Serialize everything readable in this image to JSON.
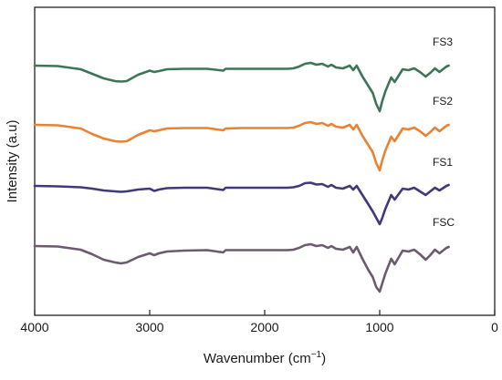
{
  "chart_data": {
    "type": "line",
    "title": "",
    "xlabel": "Wavenumber (cm",
    "xlabel_sup": "−1",
    "xlabel_close": ")",
    "ylabel": "Intensity (a.u)",
    "xlim": [
      4000,
      0
    ],
    "x_reversed": true,
    "x_ticks": [
      4000,
      3000,
      2000,
      1000,
      0
    ],
    "x_tick_labels": [
      "4000",
      "3000",
      "2000",
      "1000",
      "0"
    ],
    "y_ticks_shown": false,
    "grid": false,
    "legend": "inline labels right of each curve",
    "x": [
      4000,
      3800,
      3600,
      3500,
      3400,
      3300,
      3250,
      3200,
      3100,
      3000,
      2960,
      2920,
      2850,
      2700,
      2500,
      2360,
      2340,
      2200,
      2000,
      1800,
      1750,
      1700,
      1650,
      1600,
      1550,
      1500,
      1450,
      1420,
      1380,
      1320,
      1260,
      1230,
      1200,
      1150,
      1100,
      1060,
      1030,
      1000,
      980,
      950,
      900,
      870,
      800,
      750,
      700,
      650,
      600,
      560,
      520,
      480,
      420,
      400
    ],
    "series": [
      {
        "name": "FS3",
        "color": "#3e7557",
        "offset": 3,
        "values": [
          0,
          0.005,
          0.04,
          0.09,
          0.14,
          0.17,
          0.175,
          0.17,
          0.1,
          0.055,
          0.07,
          0.06,
          0.04,
          0.035,
          0.035,
          0.055,
          0.035,
          0.035,
          0.035,
          0.035,
          0.03,
          0.01,
          -0.02,
          -0.03,
          -0.01,
          -0.02,
          0.01,
          -0.01,
          0.02,
          0.03,
          0.0,
          0.05,
          0.0,
          0.12,
          0.22,
          0.3,
          0.42,
          0.5,
          0.4,
          0.28,
          0.13,
          0.18,
          0.04,
          0.05,
          0.03,
          0.07,
          0.12,
          0.08,
          0.03,
          0.07,
          0.01,
          0.0
        ]
      },
      {
        "name": "FS2",
        "color": "#e98232",
        "offset": 2,
        "values": [
          0,
          0.005,
          0.04,
          0.1,
          0.15,
          0.18,
          0.185,
          0.18,
          0.11,
          0.06,
          0.07,
          0.06,
          0.04,
          0.035,
          0.035,
          0.06,
          0.04,
          0.035,
          0.035,
          0.035,
          0.03,
          0.01,
          -0.02,
          -0.03,
          -0.01,
          -0.02,
          0.01,
          -0.01,
          0.02,
          0.03,
          0.0,
          0.05,
          0.0,
          0.12,
          0.22,
          0.3,
          0.42,
          0.5,
          0.4,
          0.28,
          0.13,
          0.18,
          0.04,
          0.05,
          0.03,
          0.07,
          0.12,
          0.08,
          0.03,
          0.07,
          0.01,
          0.0
        ]
      },
      {
        "name": "FS1",
        "color": "#40397a",
        "offset": 1,
        "values": [
          0,
          0.005,
          0.015,
          0.03,
          0.05,
          0.06,
          0.065,
          0.06,
          0.04,
          0.03,
          0.055,
          0.04,
          0.025,
          0.02,
          0.02,
          0.045,
          0.02,
          0.02,
          0.02,
          0.02,
          0.015,
          0.0,
          -0.03,
          -0.035,
          -0.015,
          -0.02,
          0.01,
          -0.01,
          0.02,
          0.03,
          0.0,
          0.04,
          0.0,
          0.1,
          0.2,
          0.28,
          0.35,
          0.42,
          0.36,
          0.25,
          0.1,
          0.15,
          0.03,
          0.04,
          0.02,
          0.06,
          0.1,
          0.06,
          0.02,
          0.05,
          0.0,
          -0.01
        ]
      },
      {
        "name": "FSC",
        "color": "#6c5a6e",
        "offset": 0,
        "values": [
          0,
          0.005,
          0.04,
          0.09,
          0.15,
          0.18,
          0.19,
          0.18,
          0.12,
          0.08,
          0.1,
          0.08,
          0.06,
          0.05,
          0.045,
          0.07,
          0.045,
          0.045,
          0.045,
          0.045,
          0.04,
          0.02,
          -0.01,
          -0.02,
          0.0,
          -0.01,
          0.02,
          0.0,
          0.03,
          0.04,
          0.01,
          0.07,
          0.01,
          0.14,
          0.26,
          0.34,
          0.45,
          0.5,
          0.42,
          0.3,
          0.14,
          0.2,
          0.05,
          0.06,
          0.04,
          0.09,
          0.15,
          0.1,
          0.04,
          0.08,
          0.02,
          0.01
        ]
      }
    ]
  }
}
